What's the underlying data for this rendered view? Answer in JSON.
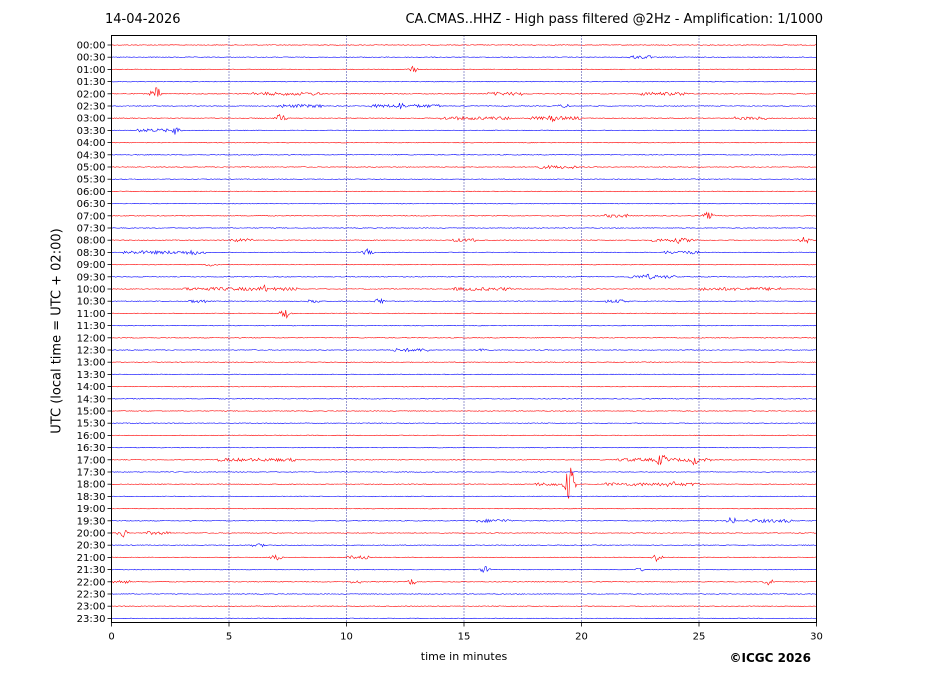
{
  "header": {
    "date": "14-04-2026",
    "title": "CA.CMAS..HHZ - High pass filtered @2Hz - Amplification: 1/1000"
  },
  "footer": {
    "copyright": "©ICGC 2026"
  },
  "chart_data": {
    "type": "line",
    "title": "CA.CMAS..HHZ - High pass filtered @2Hz - Amplification: 1/1000",
    "xlabel": "time in minutes",
    "ylabel": "UTC (local time = UTC + 02:00)",
    "xlim": [
      0,
      30
    ],
    "x_ticks": [
      "0",
      "5",
      "10",
      "15",
      "20",
      "25",
      "30"
    ],
    "y_ticks": [
      "00:00",
      "00:30",
      "01:00",
      "01:30",
      "02:00",
      "02:30",
      "03:00",
      "03:30",
      "04:00",
      "04:30",
      "05:00",
      "05:30",
      "06:00",
      "06:30",
      "07:00",
      "07:30",
      "08:00",
      "08:30",
      "09:00",
      "09:30",
      "10:00",
      "10:30",
      "11:00",
      "11:30",
      "12:00",
      "12:30",
      "13:00",
      "13:30",
      "14:00",
      "14:30",
      "15:00",
      "15:30",
      "16:00",
      "16:30",
      "17:00",
      "17:30",
      "18:00",
      "18:30",
      "19:00",
      "19:30",
      "20:00",
      "20:30",
      "21:00",
      "21:30",
      "22:00",
      "22:30",
      "23:00",
      "23:30"
    ],
    "grid": "vertical dotted at 5-minute intervals",
    "trace_colors": [
      "#ff0000",
      "#0000ff"
    ],
    "events": [
      {
        "row": "01:00",
        "minute": 12.8,
        "amplitude": 0.35
      },
      {
        "row": "02:00",
        "minute": 1.9,
        "amplitude": 0.6
      },
      {
        "row": "02:30",
        "minute": 12.3,
        "amplitude": 0.35
      },
      {
        "row": "03:00",
        "minute": 7.2,
        "amplitude": 0.4
      },
      {
        "row": "03:00",
        "minute": 18.8,
        "amplitude": 0.35
      },
      {
        "row": "03:30",
        "minute": 2.7,
        "amplitude": 0.35
      },
      {
        "row": "07:00",
        "minute": 25.4,
        "amplitude": 0.35
      },
      {
        "row": "08:00",
        "minute": 24.2,
        "amplitude": 0.35
      },
      {
        "row": "08:00",
        "minute": 29.5,
        "amplitude": 0.35
      },
      {
        "row": "08:30",
        "minute": 3.4,
        "amplitude": 0.35
      },
      {
        "row": "08:30",
        "minute": 10.9,
        "amplitude": 0.3
      },
      {
        "row": "09:30",
        "minute": 22.8,
        "amplitude": 0.3
      },
      {
        "row": "10:00",
        "minute": 6.5,
        "amplitude": 0.35
      },
      {
        "row": "10:30",
        "minute": 8.6,
        "amplitude": 0.3
      },
      {
        "row": "10:30",
        "minute": 11.4,
        "amplitude": 0.3
      },
      {
        "row": "11:00",
        "minute": 7.4,
        "amplitude": 0.45
      },
      {
        "row": "12:30",
        "minute": 15.8,
        "amplitude": 0.3
      },
      {
        "row": "17:00",
        "minute": 23.4,
        "amplitude": 0.6
      },
      {
        "row": "17:00",
        "minute": 24.8,
        "amplitude": 0.45
      },
      {
        "row": "18:00",
        "minute": 19.5,
        "amplitude": 1.6
      },
      {
        "row": "18:00",
        "minute": 23.8,
        "amplitude": 0.35
      },
      {
        "row": "19:30",
        "minute": 26.4,
        "amplitude": 0.35
      },
      {
        "row": "20:00",
        "minute": 0.5,
        "amplitude": 0.4
      },
      {
        "row": "21:00",
        "minute": 7.0,
        "amplitude": 0.35
      },
      {
        "row": "21:00",
        "minute": 23.2,
        "amplitude": 0.35
      },
      {
        "row": "21:30",
        "minute": 15.9,
        "amplitude": 0.3
      },
      {
        "row": "22:00",
        "minute": 12.8,
        "amplitude": 0.3
      },
      {
        "row": "22:00",
        "minute": 28.0,
        "amplitude": 0.35
      }
    ],
    "noise_bursts": [
      {
        "row": "00:30",
        "from": 22,
        "to": 23
      },
      {
        "row": "02:00",
        "from": 6,
        "to": 9
      },
      {
        "row": "02:00",
        "from": 16,
        "to": 17.5
      },
      {
        "row": "02:00",
        "from": 22.5,
        "to": 24.5
      },
      {
        "row": "02:30",
        "from": 7,
        "to": 9
      },
      {
        "row": "02:30",
        "from": 11,
        "to": 14
      },
      {
        "row": "02:30",
        "from": 19,
        "to": 19.5
      },
      {
        "row": "03:00",
        "from": 14,
        "to": 17
      },
      {
        "row": "03:00",
        "from": 17.8,
        "to": 20
      },
      {
        "row": "03:00",
        "from": 26.5,
        "to": 28
      },
      {
        "row": "03:30",
        "from": 1,
        "to": 3
      },
      {
        "row": "05:00",
        "from": 18,
        "to": 19.8
      },
      {
        "row": "07:00",
        "from": 21,
        "to": 22
      },
      {
        "row": "08:00",
        "from": 5,
        "to": 6
      },
      {
        "row": "08:00",
        "from": 14.5,
        "to": 15.5
      },
      {
        "row": "08:00",
        "from": 23,
        "to": 25
      },
      {
        "row": "08:30",
        "from": 0.5,
        "to": 4
      },
      {
        "row": "08:30",
        "from": 23.5,
        "to": 25
      },
      {
        "row": "09:00",
        "from": 4,
        "to": 4.5
      },
      {
        "row": "09:30",
        "from": 22,
        "to": 24
      },
      {
        "row": "10:00",
        "from": 3,
        "to": 8
      },
      {
        "row": "10:00",
        "from": 14.5,
        "to": 17
      },
      {
        "row": "10:00",
        "from": 25,
        "to": 28.5
      },
      {
        "row": "10:30",
        "from": 3.3,
        "to": 4
      },
      {
        "row": "10:30",
        "from": 21,
        "to": 22
      },
      {
        "row": "12:30",
        "from": 12,
        "to": 13.5
      },
      {
        "row": "17:00",
        "from": 21.5,
        "to": 25.5
      },
      {
        "row": "17:00",
        "from": 4.5,
        "to": 8
      },
      {
        "row": "18:00",
        "from": 18,
        "to": 19
      },
      {
        "row": "18:00",
        "from": 21,
        "to": 25
      },
      {
        "row": "19:30",
        "from": 15.5,
        "to": 17
      },
      {
        "row": "19:30",
        "from": 27,
        "to": 29
      },
      {
        "row": "20:00",
        "from": 1.5,
        "to": 2.5
      },
      {
        "row": "20:30",
        "from": 6,
        "to": 6.6
      },
      {
        "row": "21:00",
        "from": 10,
        "to": 11
      },
      {
        "row": "21:30",
        "from": 22.3,
        "to": 22.7
      },
      {
        "row": "22:00",
        "from": 10.2,
        "to": 10.6
      },
      {
        "row": "22:00",
        "from": 0,
        "to": 0.8
      }
    ]
  }
}
